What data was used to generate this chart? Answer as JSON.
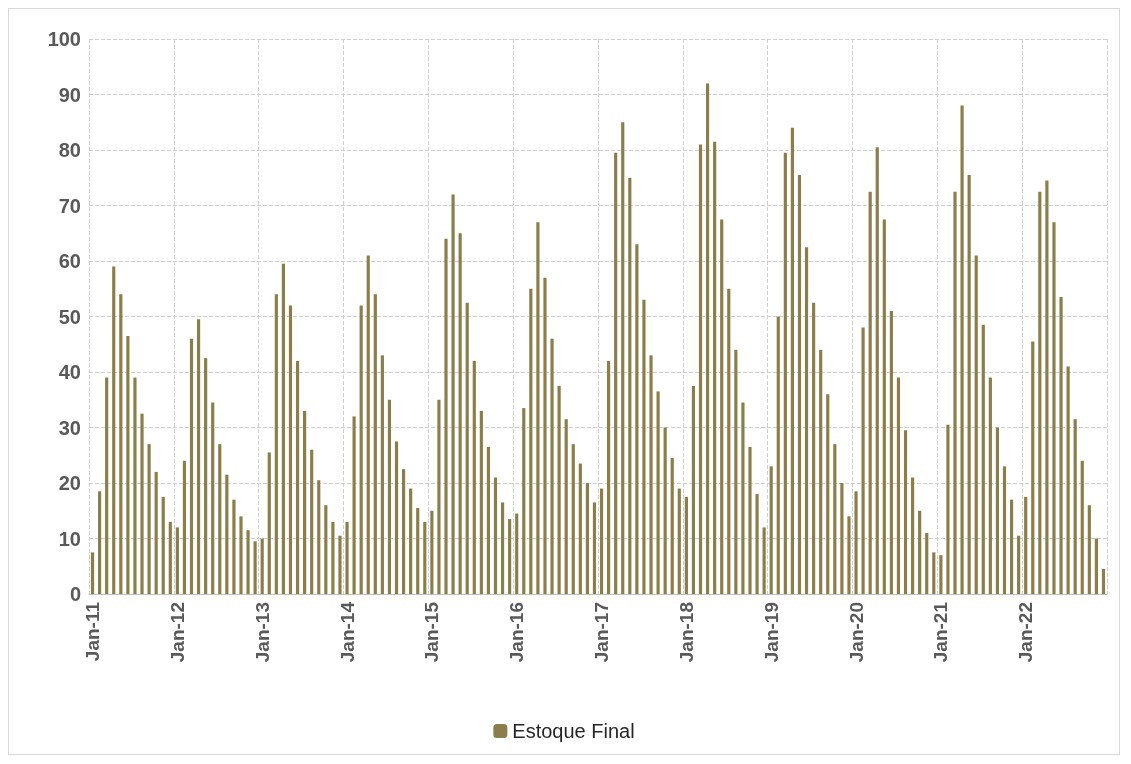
{
  "chart_data": {
    "type": "bar",
    "categories": [
      "Jan-11",
      null,
      null,
      null,
      null,
      null,
      null,
      null,
      null,
      null,
      null,
      null,
      "Jan-12",
      null,
      null,
      null,
      null,
      null,
      null,
      null,
      null,
      null,
      null,
      null,
      "Jan-13",
      null,
      null,
      null,
      null,
      null,
      null,
      null,
      null,
      null,
      null,
      null,
      "Jan-14",
      null,
      null,
      null,
      null,
      null,
      null,
      null,
      null,
      null,
      null,
      null,
      "Jan-15",
      null,
      null,
      null,
      null,
      null,
      null,
      null,
      null,
      null,
      null,
      null,
      "Jan-16",
      null,
      null,
      null,
      null,
      null,
      null,
      null,
      null,
      null,
      null,
      null,
      "Jan-17",
      null,
      null,
      null,
      null,
      null,
      null,
      null,
      null,
      null,
      null,
      null,
      "Jan-18",
      null,
      null,
      null,
      null,
      null,
      null,
      null,
      null,
      null,
      null,
      null,
      "Jan-19",
      null,
      null,
      null,
      null,
      null,
      null,
      null,
      null,
      null,
      null,
      null,
      "Jan-20",
      null,
      null,
      null,
      null,
      null,
      null,
      null,
      null,
      null,
      null,
      null,
      "Jan-21",
      null,
      null,
      null,
      null,
      null,
      null,
      null,
      null,
      null,
      null,
      null,
      "Jan-22",
      null,
      null,
      null,
      null,
      null,
      null,
      null,
      null,
      null,
      null,
      null
    ],
    "series": [
      {
        "name": "Estoque Final",
        "color": "#8c7e4b",
        "values": [
          7.5,
          18.5,
          39,
          59,
          54,
          46.5,
          39,
          32.5,
          27,
          22,
          17.5,
          13,
          12,
          24,
          46,
          49.5,
          42.5,
          34.5,
          27,
          21.5,
          17,
          14,
          11.5,
          9.5,
          10,
          25.5,
          54,
          59.5,
          52,
          42,
          33,
          26,
          20.5,
          16,
          13,
          10.5,
          13,
          32,
          52,
          61,
          54,
          43,
          35,
          27.5,
          22.5,
          19,
          15.5,
          13,
          15,
          35,
          64,
          72,
          65,
          52.5,
          42,
          33,
          26.5,
          21,
          16.5,
          13.5,
          14.5,
          33.5,
          55,
          67,
          57,
          46,
          37.5,
          31.5,
          27,
          23.5,
          20,
          16.5,
          19,
          42,
          79.5,
          85,
          75,
          63,
          53,
          43,
          36.5,
          30,
          24.5,
          19,
          17.5,
          37.5,
          81,
          92,
          81.5,
          67.5,
          55,
          44,
          34.5,
          26.5,
          18,
          12,
          23,
          50,
          79.5,
          84,
          75.5,
          62.5,
          52.5,
          44,
          36,
          27,
          20,
          14,
          18.5,
          48,
          72.5,
          80.5,
          67.5,
          51,
          39,
          29.5,
          21,
          15,
          11,
          7.5,
          7,
          30.5,
          72.5,
          88,
          75.5,
          61,
          48.5,
          39,
          30,
          23,
          17,
          10.5,
          17.5,
          45.5,
          72.5,
          74.5,
          67,
          53.5,
          41,
          31.5,
          24,
          16,
          10,
          4.5
        ]
      }
    ],
    "ylim": [
      0,
      100
    ],
    "yticks": [
      0,
      10,
      20,
      30,
      40,
      50,
      60,
      70,
      80,
      90,
      100
    ],
    "grid": true,
    "legend": "bottom"
  }
}
